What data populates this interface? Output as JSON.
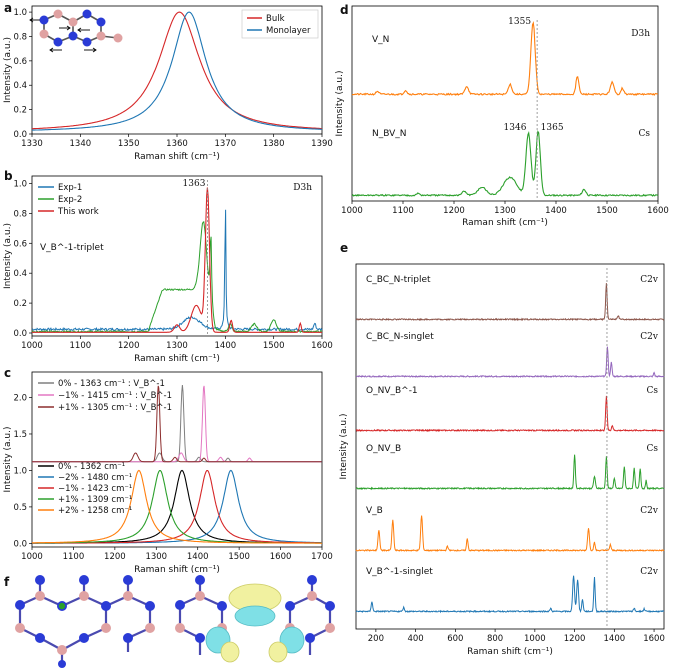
{
  "chart_data": [
    {
      "panel": "a",
      "type": "line",
      "xlabel": "Raman shift (cm⁻¹)",
      "ylabel": "Intensity (a.u.)",
      "xlim": [
        1330,
        1390
      ],
      "ylim": [
        0,
        1.05
      ],
      "xticks": [
        1330,
        1340,
        1350,
        1360,
        1370,
        1380,
        1390
      ],
      "yticks": [
        0.0,
        0.2,
        0.4,
        0.6,
        0.8,
        1.0
      ],
      "series": [
        {
          "name": "Bulk",
          "color": "#d62728",
          "center": 1360.5,
          "width": 5.5,
          "amp": 1.0
        },
        {
          "name": "Monolayer",
          "color": "#1f77b4",
          "center": 1362.5,
          "width": 4.5,
          "amp": 1.0
        }
      ]
    },
    {
      "panel": "b",
      "type": "line",
      "xlabel": "Raman shift (cm⁻¹)",
      "ylabel": "Intensity (a.u.)",
      "xlim": [
        1000,
        1600
      ],
      "ylim": [
        -0.02,
        1.05
      ],
      "xticks": [
        1000,
        1100,
        1200,
        1300,
        1400,
        1500,
        1600
      ],
      "yticks": [
        0.0,
        0.2,
        0.4,
        0.6,
        0.8,
        1.0
      ],
      "annotation": "1363",
      "symmetry": "D3h",
      "label": "V_B^-1-triplet",
      "series": [
        {
          "name": "Exp-1",
          "color": "#1f77b4"
        },
        {
          "name": "Exp-2",
          "color": "#2ca02c"
        },
        {
          "name": "This work",
          "color": "#d62728"
        }
      ]
    },
    {
      "panel": "c",
      "type": "line",
      "xlabel": "Raman shift (cm⁻¹)",
      "ylabel": "Intensity (a.u.)",
      "xlim": [
        1000,
        1700
      ],
      "ylim": [
        -0.05,
        2.35
      ],
      "xticks": [
        1000,
        1100,
        1200,
        1300,
        1400,
        1500,
        1600,
        1700
      ],
      "yticks": [
        0.0,
        0.5,
        1.0,
        1.5,
        2.0
      ],
      "upper_series": [
        {
          "name": "0% - 1363 cm⁻¹ : V_B^-1",
          "color": "#7f7f7f",
          "center": 1363
        },
        {
          "name": "−1% - 1415 cm⁻¹ : V_B^-1",
          "color": "#e377c2",
          "center": 1415
        },
        {
          "name": "+1% - 1305 cm⁻¹ : V_B^-1",
          "color": "#8c2d2d",
          "center": 1305
        }
      ],
      "lower_series": [
        {
          "name": "0% - 1362 cm⁻¹",
          "color": "#000000",
          "center": 1362
        },
        {
          "name": "−2% - 1480 cm⁻¹",
          "color": "#1f77b4",
          "center": 1480
        },
        {
          "name": "−1% - 1423 cm⁻¹",
          "color": "#d62728",
          "center": 1423
        },
        {
          "name": "+1% - 1309 cm⁻¹",
          "color": "#2ca02c",
          "center": 1309
        },
        {
          "name": "+2% - 1258 cm⁻¹",
          "color": "#ff7f0e",
          "center": 1258
        }
      ]
    },
    {
      "panel": "d",
      "type": "line",
      "xlabel": "Raman shift (cm⁻¹)",
      "ylabel": "Intensity (a.u.)",
      "xlim": [
        1000,
        1600
      ],
      "xticks": [
        1000,
        1100,
        1200,
        1300,
        1400,
        1500,
        1600
      ],
      "series": [
        {
          "name": "V_N",
          "color": "#ff7f0e",
          "symmetry": "D3h",
          "peaks": [
            "1355"
          ]
        },
        {
          "name": "N_BV_N",
          "color": "#2ca02c",
          "symmetry": "Cs",
          "peaks": [
            "1346",
            "1365"
          ]
        }
      ]
    },
    {
      "panel": "e",
      "type": "line",
      "xlabel": "Raman shift (cm⁻¹)",
      "ylabel": "Intensity (a.u.)",
      "xlim": [
        100,
        1650
      ],
      "xticks": [
        200,
        400,
        600,
        800,
        1000,
        1200,
        1400,
        1600
      ],
      "series": [
        {
          "name": "C_BC_N-triplet",
          "color": "#8c564b",
          "symmetry": "C2v"
        },
        {
          "name": "C_BC_N-singlet",
          "color": "#9467bd",
          "symmetry": "C2v"
        },
        {
          "name": "O_NV_B^-1",
          "color": "#d62728",
          "symmetry": "Cs"
        },
        {
          "name": "O_NV_B",
          "color": "#2ca02c",
          "symmetry": "Cs"
        },
        {
          "name": "V_B",
          "color": "#ff7f0e",
          "symmetry": "C2v"
        },
        {
          "name": "V_B^-1-singlet",
          "color": "#1f77b4",
          "symmetry": "C2v"
        }
      ]
    }
  ],
  "panels": {
    "a": "a",
    "b": "b",
    "c": "c",
    "d": "d",
    "e": "e",
    "f": "f"
  }
}
